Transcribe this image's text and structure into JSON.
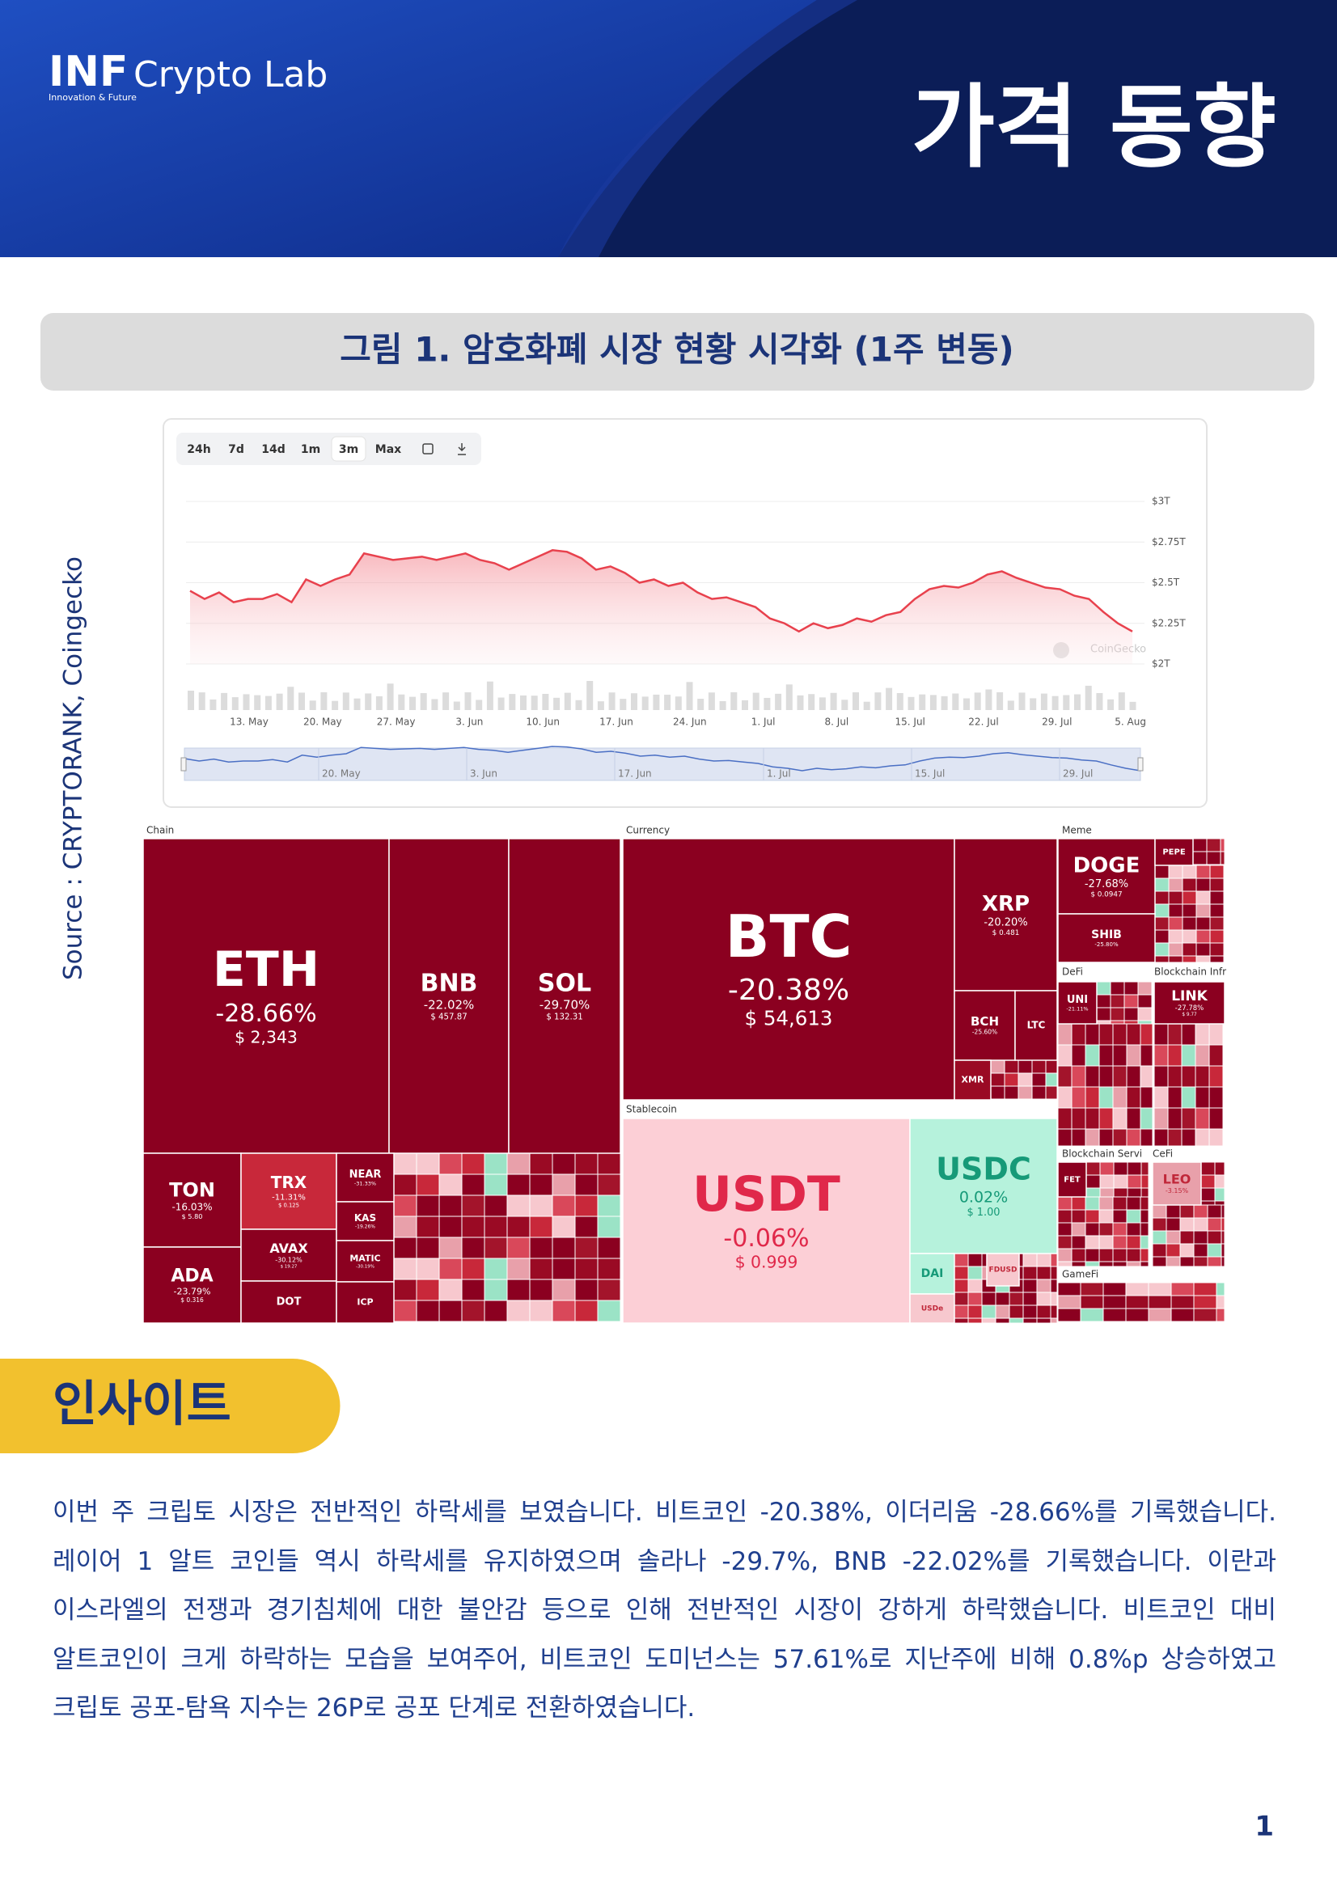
{
  "header": {
    "logo_mark": "INF",
    "logo_text": "Crypto Lab",
    "logo_tagline": "Innovation & Future",
    "title": "가격 동향"
  },
  "figure": {
    "caption": "그림 1. 암호화폐 시장 현황 시각화 (1주 변동)",
    "source": "Source : CRYPTORANK, Coingecko",
    "price_chart": {
      "type": "line",
      "timeframes": [
        "24h",
        "7d",
        "14d",
        "1m",
        "3m",
        "Max"
      ],
      "selected_timeframe": "3m",
      "color": "#e8414d",
      "values": [
        2.45,
        2.4,
        2.44,
        2.38,
        2.4,
        2.4,
        2.43,
        2.38,
        2.52,
        2.48,
        2.52,
        2.55,
        2.68,
        2.66,
        2.64,
        2.65,
        2.66,
        2.64,
        2.66,
        2.68,
        2.64,
        2.62,
        2.58,
        2.62,
        2.66,
        2.7,
        2.69,
        2.65,
        2.58,
        2.6,
        2.56,
        2.5,
        2.52,
        2.48,
        2.5,
        2.44,
        2.4,
        2.41,
        2.38,
        2.35,
        2.28,
        2.25,
        2.2,
        2.25,
        2.22,
        2.24,
        2.28,
        2.26,
        2.3,
        2.32,
        2.4,
        2.46,
        2.48,
        2.47,
        2.5,
        2.55,
        2.57,
        2.53,
        2.5,
        2.47,
        2.46,
        2.42,
        2.4,
        2.32,
        2.25,
        2.2
      ],
      "ylim": [
        2,
        3
      ],
      "yticks": [
        {
          "value": 3,
          "label": "$3T"
        },
        {
          "value": 2.75,
          "label": "$2.75T"
        },
        {
          "value": 2.5,
          "label": "$2.5T"
        },
        {
          "value": 2.25,
          "label": "$2.25T"
        },
        {
          "value": 2,
          "label": "$2T"
        }
      ],
      "xticks": [
        "13. May",
        "20. May",
        "27. May",
        "3. Jun",
        "10. Jun",
        "17. Jun",
        "24. Jun",
        "1. Jul",
        "8. Jul",
        "15. Jul",
        "22. Jul",
        "29. Jul",
        "5. Aug"
      ],
      "navigator_labels": [
        "20. May",
        "3. Jun",
        "17. Jun",
        "1. Jul",
        "15. Jul",
        "29. Jul"
      ],
      "watermark": "CoinGecko",
      "grid": true
    },
    "treemap": {
      "sections": [
        "Chain",
        "Currency",
        "Meme",
        "DeFi",
        "Blockchain Infr",
        "Stablecoin",
        "Blockchain Servi",
        "CeFi",
        "GameFi"
      ],
      "tiles": [
        {
          "label": "ETH",
          "change": "-28.66%",
          "price": "$ 2,343"
        },
        {
          "label": "BNB",
          "change": "-22.02%",
          "price": "$ 457.87"
        },
        {
          "label": "SOL",
          "change": "-29.70%",
          "price": "$ 132.31"
        },
        {
          "label": "TON",
          "change": "-16.03%",
          "price": "$ 5.80"
        },
        {
          "label": "ADA",
          "change": "-23.79%",
          "price": "$ 0.316"
        },
        {
          "label": "TRX",
          "change": "-11.31%",
          "price": "$ 0.125"
        },
        {
          "label": "AVAX",
          "change": "-30.12%",
          "price": "$ 19.27"
        },
        {
          "label": "DOT"
        },
        {
          "label": "NEAR",
          "change": "-31.33%"
        },
        {
          "label": "KAS",
          "change": "-19.26%"
        },
        {
          "label": "MATIC",
          "change": "-30.19%"
        },
        {
          "label": "ICP"
        },
        {
          "label": "BTC",
          "change": "-20.38%",
          "price": "$ 54,613"
        },
        {
          "label": "XRP",
          "change": "-20.20%",
          "price": "$ 0.481"
        },
        {
          "label": "BCH",
          "change": "-25.60%"
        },
        {
          "label": "LTC"
        },
        {
          "label": "XMR"
        },
        {
          "label": "USDT",
          "change": "-0.06%",
          "price": "$ 0.999"
        },
        {
          "label": "USDC",
          "change": "0.02%",
          "price": "$ 1.00"
        },
        {
          "label": "DAI"
        },
        {
          "label": "USDe"
        },
        {
          "label": "FDUSD"
        },
        {
          "label": "DOGE",
          "change": "-27.68%",
          "price": "$ 0.0947"
        },
        {
          "label": "SHIB",
          "change": "-25.80%"
        },
        {
          "label": "PEPE"
        },
        {
          "label": "UNI",
          "change": "-21.11%"
        },
        {
          "label": "LINK",
          "change": "-27.78%",
          "price": "$ 9.77"
        },
        {
          "label": "FET"
        },
        {
          "label": "LEO",
          "change": "-3.15%"
        }
      ]
    }
  },
  "insight": {
    "heading": "인사이트",
    "lines": [
      "이번 주 크립토 시장은 전반적인 하락세를 보였습니다. 비트코인 -20.38%, 이더리움 -28.66%를 기록했습니다.",
      "레이어 1 알트 코인들 역시 하락세를 유지하였으며 솔라나 -29.7%, BNB -22.02%를 기록했습니다. 이란과",
      "이스라엘의 전쟁과 경기침체에 대한 불안감 등으로 인해 전반적인 시장이 강하게 하락했습니다. 비트코인 대비",
      "알트코인이 크게 하락하는 모습을 보여주어, 비트코인 도미넌스는 57.61%로 지난주에 비해 0.8%p 상승하였고",
      "크립토 공포-탐욕 지수는 26P로 공포 단계로 전환하였습니다."
    ]
  },
  "page_number": "1"
}
